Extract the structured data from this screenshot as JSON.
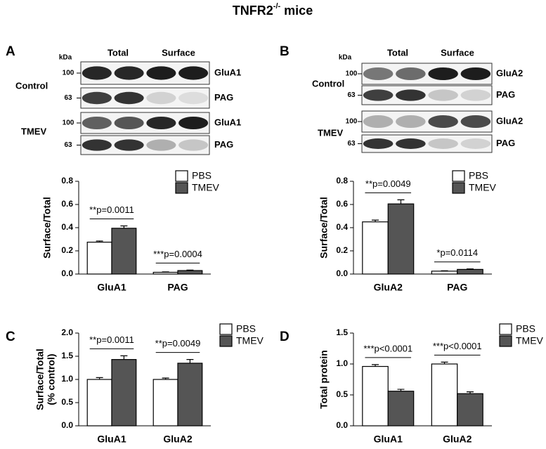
{
  "title": {
    "base": "TNFR2",
    "sup": "-/-",
    "rest": " mice"
  },
  "panels": [
    "A",
    "B",
    "C",
    "D"
  ],
  "blots": [
    {
      "kda": "kDa",
      "columns": [
        "Total",
        "Surface"
      ],
      "groups": [
        {
          "label": "Control",
          "rows": [
            {
              "mw": 100,
              "protein": "GluA1"
            },
            {
              "mw": 63,
              "protein": "PAG"
            }
          ]
        },
        {
          "label": "TMEV",
          "rows": [
            {
              "mw": 100,
              "protein": "GluA1"
            },
            {
              "mw": 63,
              "protein": "PAG"
            }
          ]
        }
      ]
    },
    {
      "kda": "kDa",
      "columns": [
        "Total",
        "Surface"
      ],
      "groups": [
        {
          "label": "Control",
          "rows": [
            {
              "mw": 100,
              "protein": "GluA2"
            },
            {
              "mw": 63,
              "protein": "PAG"
            }
          ]
        },
        {
          "label": "TMEV",
          "rows": [
            {
              "mw": 100,
              "protein": "GluA2"
            },
            {
              "mw": 63,
              "protein": "PAG"
            }
          ]
        }
      ]
    }
  ],
  "chart_data": [
    {
      "type": "bar",
      "ylabel": "Surface/Total",
      "categories": [
        "GluA1",
        "PAG"
      ],
      "series": [
        {
          "name": "PBS",
          "color": "#ffffff",
          "values": [
            0.275,
            0.015
          ],
          "errors": [
            0.01,
            0.003
          ]
        },
        {
          "name": "TMEV",
          "color": "#555555",
          "values": [
            0.395,
            0.03
          ],
          "errors": [
            0.02,
            0.004
          ]
        }
      ],
      "annotations": [
        "**p=0.0011",
        "***p=0.0004"
      ],
      "ylim": [
        0,
        0.8
      ],
      "yticks": [
        {
          "value": 0,
          "label": "0.0"
        },
        0.2,
        0.4,
        0.6,
        0.8
      ]
    },
    {
      "type": "bar",
      "ylabel": "Surface/Total",
      "categories": [
        "GluA2",
        "PAG"
      ],
      "series": [
        {
          "name": "PBS",
          "color": "#ffffff",
          "values": [
            0.45,
            0.025
          ],
          "errors": [
            0.015,
            0.003
          ]
        },
        {
          "name": "TMEV",
          "color": "#555555",
          "values": [
            0.605,
            0.04
          ],
          "errors": [
            0.035,
            0.004
          ]
        }
      ],
      "annotations": [
        "**p=0.0049",
        "*p=0.0114"
      ],
      "ylim": [
        0,
        0.8
      ],
      "yticks": [
        {
          "value": 0,
          "label": "0.0"
        },
        0.2,
        0.4,
        0.6,
        0.8
      ]
    },
    {
      "type": "bar",
      "ylabel": [
        "Surface/Total",
        "(% control)"
      ],
      "categories": [
        "GluA1",
        "GluA2"
      ],
      "series": [
        {
          "name": "PBS",
          "color": "#ffffff",
          "values": [
            1.0,
            1.0
          ],
          "errors": [
            0.04,
            0.03
          ]
        },
        {
          "name": "TMEV",
          "color": "#555555",
          "values": [
            1.43,
            1.35
          ],
          "errors": [
            0.08,
            0.08
          ]
        }
      ],
      "annotations": [
        "**p=0.0011",
        "**p=0.0049"
      ],
      "ylim": [
        0,
        2.0
      ],
      "yticks": [
        {
          "value": 0,
          "label": "0.0"
        },
        0.5,
        {
          "value": 1,
          "label": "1.0"
        },
        1.5,
        {
          "value": 2,
          "label": "2.0"
        }
      ]
    },
    {
      "type": "bar",
      "ylabel": "Total protein",
      "categories": [
        "GluA1",
        "GluA2"
      ],
      "series": [
        {
          "name": "PBS",
          "color": "#ffffff",
          "values": [
            0.96,
            1.0
          ],
          "errors": [
            0.03,
            0.03
          ]
        },
        {
          "name": "TMEV",
          "color": "#555555",
          "values": [
            0.56,
            0.52
          ],
          "errors": [
            0.03,
            0.03
          ]
        }
      ],
      "annotations": [
        "***p<0.0001",
        "***p<0.0001"
      ],
      "ylim": [
        0,
        1.5
      ],
      "yticks": [
        {
          "value": 0,
          "label": "0.0"
        },
        0.5,
        {
          "value": 1,
          "label": "1.0"
        },
        1.5
      ]
    }
  ]
}
